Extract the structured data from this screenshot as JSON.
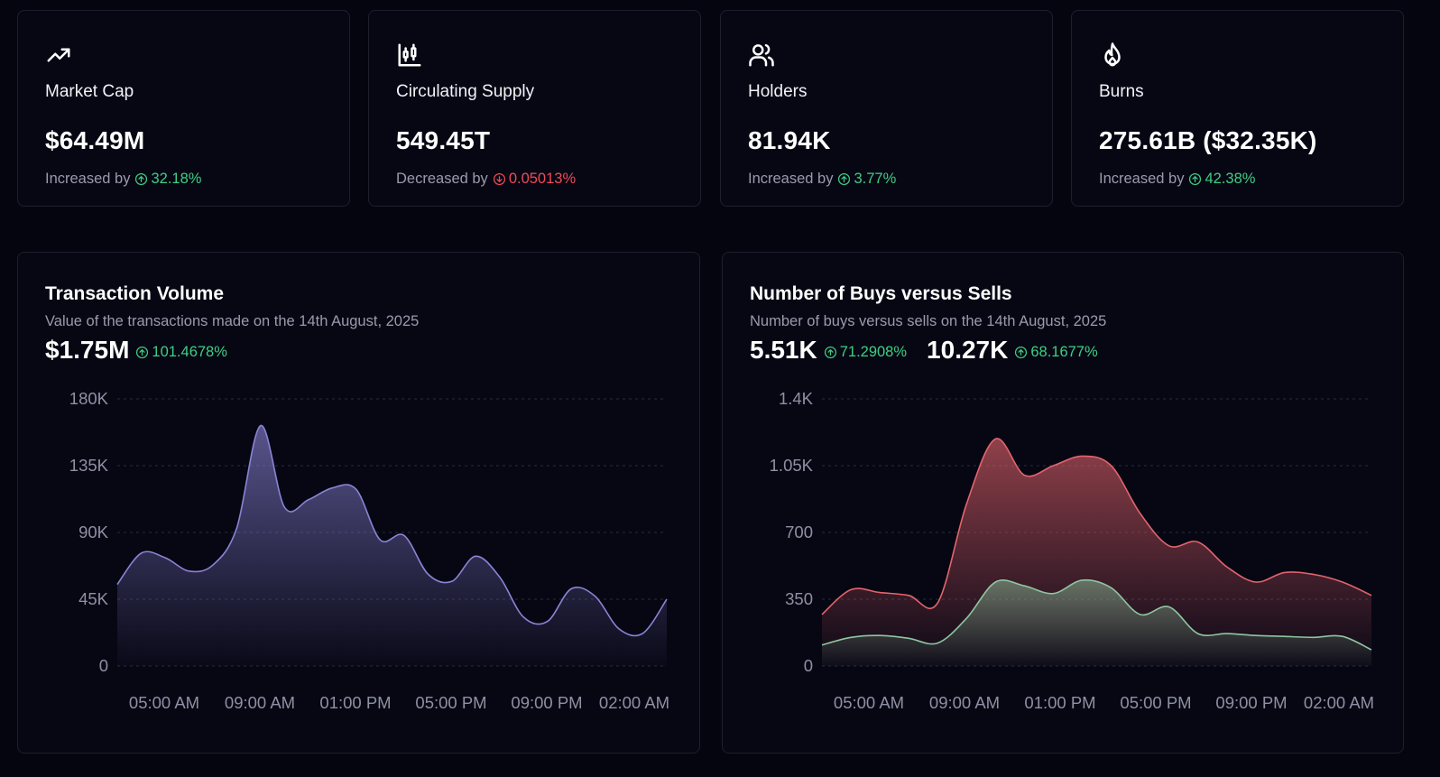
{
  "stats": [
    {
      "icon": "trending-up-icon",
      "label": "Market Cap",
      "value": "$64.49M",
      "change_prefix": "Increased by",
      "change": "32.18%",
      "direction": "up"
    },
    {
      "icon": "candlestick-chart-icon",
      "label": "Circulating Supply",
      "value": "549.45T",
      "change_prefix": "Decreased by",
      "change": "0.05013%",
      "direction": "down"
    },
    {
      "icon": "users-icon",
      "label": "Holders",
      "value": "81.94K",
      "change_prefix": "Increased by",
      "change": "3.77%",
      "direction": "up"
    },
    {
      "icon": "flame-icon",
      "label": "Burns",
      "value": "275.61B ($32.35K)",
      "change_prefix": "Increased by",
      "change": "42.38%",
      "direction": "up"
    }
  ],
  "colors": {
    "background": "#05050f",
    "card": "#070714",
    "border": "#1e1f2c",
    "up": "#3ecf83",
    "down": "#ef4a55",
    "volume": "#8a84d6",
    "sells": "#e4646c",
    "buys": "#8fc6a0"
  },
  "volume_panel": {
    "title": "Transaction Volume",
    "subtitle": "Value of the transactions made on the 14th August, 2025",
    "value": "$1.75M",
    "change": "101.4678%"
  },
  "buysell_panel": {
    "title": "Number of Buys versus Sells",
    "subtitle": "Number of buys versus sells on the 14th August, 2025",
    "buys_value": "5.51K",
    "buys_change": "71.2908%",
    "sells_value": "10.27K",
    "sells_change": "68.1677%"
  },
  "chart_data": [
    {
      "type": "area",
      "x_ticks": [
        "05:00 AM",
        "09:00 AM",
        "01:00 PM",
        "05:00 PM",
        "09:00 PM",
        "02:00 AM"
      ],
      "y_ticks": [
        "0",
        "45K",
        "90K",
        "135K",
        "180K"
      ],
      "ylim": [
        0,
        180000
      ],
      "grid": true,
      "series": [
        {
          "values": [
            55000,
            76000,
            73000,
            64000,
            68000,
            93000,
            162000,
            107000,
            112000,
            120000,
            119000,
            85000,
            88000,
            62000,
            57000,
            74000,
            60000,
            33000,
            30000,
            52000,
            47000,
            25000,
            22000,
            45000
          ]
        }
      ]
    },
    {
      "type": "area",
      "x_ticks": [
        "05:00 AM",
        "09:00 AM",
        "01:00 PM",
        "05:00 PM",
        "09:00 PM",
        "02:00 AM"
      ],
      "y_ticks": [
        "0",
        "350",
        "700",
        "1.05K",
        "1.4K"
      ],
      "ylim": [
        0,
        1400
      ],
      "grid": true,
      "series": [
        {
          "values": [
            270,
            400,
            385,
            370,
            330,
            850,
            1190,
            1000,
            1050,
            1100,
            1050,
            800,
            630,
            650,
            520,
            440,
            490,
            480,
            440,
            370
          ]
        },
        {
          "values": [
            110,
            150,
            160,
            145,
            120,
            250,
            440,
            420,
            380,
            450,
            410,
            270,
            310,
            170,
            170,
            160,
            155,
            150,
            155,
            85
          ]
        }
      ]
    }
  ]
}
